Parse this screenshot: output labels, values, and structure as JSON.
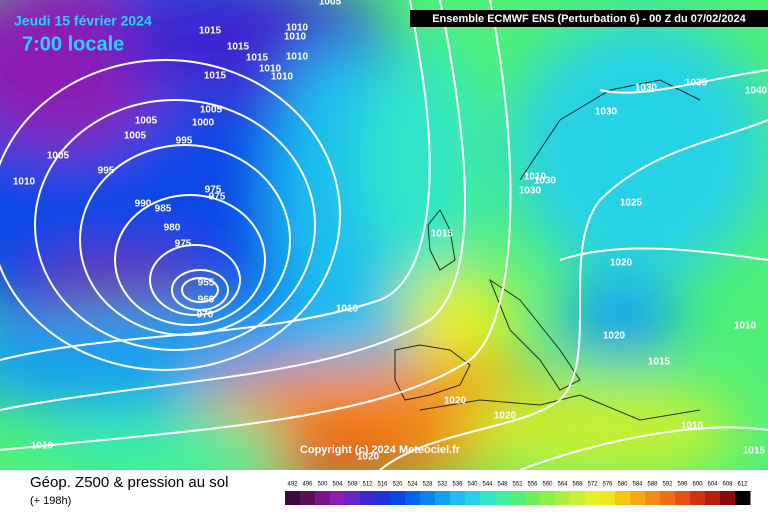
{
  "header": {
    "date": "Jeudi 15 février 2024",
    "time": "7:00 locale",
    "run": "Ensemble ECMWF ENS  (Perturbation 6)  - 00 Z du 07/02/2024"
  },
  "copyright": "Copyright (c) 2024 Meteociel.fr",
  "footer": {
    "title": "Géop. Z500 & pression au sol",
    "lead": "(+ 198h)"
  },
  "isobar_labels": [
    "1005",
    "1015",
    "1015",
    "1010",
    "1010",
    "1015",
    "1010",
    "1015",
    "1010",
    "1010",
    "1005",
    "1000",
    "1005",
    "1005",
    "995",
    "1005",
    "995",
    "1010",
    "975",
    "975",
    "990",
    "985",
    "980",
    "975",
    "955",
    "960",
    "970",
    "1010",
    "1015",
    "1030",
    "1035",
    "1040",
    "1030",
    "1010",
    "1030",
    "1030",
    "1025",
    "1020",
    "1020",
    "1015",
    "1010",
    "1010",
    "1015",
    "1020",
    "1020",
    "1010",
    "1020"
  ],
  "legend": {
    "values": [
      "492",
      "496",
      "500",
      "504",
      "508",
      "512",
      "516",
      "520",
      "524",
      "528",
      "532",
      "536",
      "540",
      "544",
      "548",
      "552",
      "556",
      "560",
      "564",
      "568",
      "572",
      "576",
      "580",
      "584",
      "588",
      "592",
      "596",
      "600",
      "604",
      "608",
      "612"
    ],
    "colors": [
      "#3c0a3c",
      "#5a0f5a",
      "#78148c",
      "#8c1eb4",
      "#6428c8",
      "#3c28d2",
      "#1e32dc",
      "#0a46e6",
      "#0064f0",
      "#0a82f0",
      "#14a0f0",
      "#1ebef0",
      "#28d2e6",
      "#32e6c8",
      "#3cf0a0",
      "#50f078",
      "#6ef05a",
      "#8cf046",
      "#aaf03c",
      "#c8f032",
      "#e6f028",
      "#f0e61e",
      "#f5c814",
      "#f5aa14",
      "#f58c14",
      "#f06e14",
      "#e65014",
      "#d23214",
      "#b41e14",
      "#8c0a0a",
      "#000000"
    ]
  }
}
